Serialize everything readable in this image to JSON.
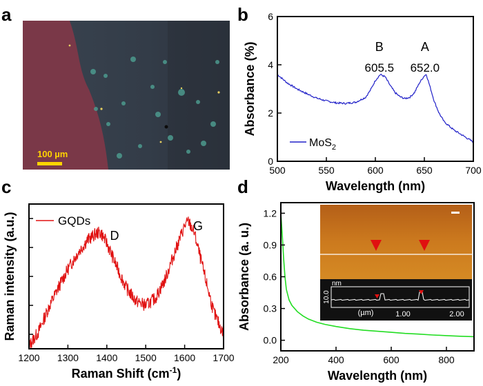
{
  "panels": {
    "a": {
      "letter": "a",
      "scalebar_label": "100 µm"
    },
    "b": {
      "letter": "b"
    },
    "c": {
      "letter": "c"
    },
    "d": {
      "letter": "d"
    }
  },
  "chart_data": [
    {
      "id": "b",
      "type": "line",
      "xlabel": "Wavelength (nm)",
      "ylabel": "Absorbance (%)",
      "xlim": [
        500,
        700
      ],
      "ylim": [
        0,
        6
      ],
      "xticks": [
        500,
        550,
        600,
        650,
        700
      ],
      "yticks": [
        0,
        2,
        4,
        6
      ],
      "legend": {
        "label": "MoS",
        "subscript": "2",
        "placement": "bottom-left"
      },
      "color": "#2020c8",
      "annotations": [
        {
          "label": "B",
          "value_label": "605.5",
          "x": 605.5
        },
        {
          "label": "A",
          "value_label": "652.0",
          "x": 652.0
        }
      ],
      "series": [
        {
          "name": "MoS2",
          "x": [
            500,
            510,
            520,
            530,
            540,
            550,
            560,
            570,
            580,
            590,
            595,
            600,
            605,
            610,
            615,
            620,
            625,
            630,
            635,
            640,
            645,
            650,
            652,
            655,
            660,
            665,
            670,
            680,
            690,
            700
          ],
          "y": [
            3.6,
            3.25,
            3.0,
            2.8,
            2.62,
            2.5,
            2.42,
            2.4,
            2.45,
            2.65,
            2.95,
            3.35,
            3.6,
            3.5,
            3.15,
            2.85,
            2.68,
            2.6,
            2.65,
            2.85,
            3.25,
            3.55,
            3.6,
            3.2,
            2.5,
            2.0,
            1.65,
            1.3,
            1.05,
            0.8
          ]
        }
      ]
    },
    {
      "id": "c",
      "type": "line",
      "xlabel": "Raman Shift (cm⁻¹)",
      "xlabel_main": "Raman Shift (cm",
      "xlabel_sup": "-1",
      "xlabel_end": ")",
      "ylabel": "Raman intensity (a.u.)",
      "xlim": [
        1200,
        1700
      ],
      "ylim": [
        0,
        1
      ],
      "xticks": [
        1200,
        1300,
        1400,
        1500,
        1600,
        1700
      ],
      "legend": {
        "label": "GQDs",
        "placement": "top-left"
      },
      "color": "#e01010",
      "annotations": [
        {
          "label": "D",
          "x": 1380
        },
        {
          "label": "G",
          "x": 1605
        }
      ],
      "series": [
        {
          "name": "GQDs",
          "x": [
            1200,
            1225,
            1250,
            1275,
            1300,
            1325,
            1350,
            1375,
            1385,
            1400,
            1425,
            1450,
            1475,
            1500,
            1525,
            1550,
            1575,
            1600,
            1610,
            1625,
            1650,
            1675,
            1700
          ],
          "y": [
            0.02,
            0.12,
            0.28,
            0.42,
            0.55,
            0.66,
            0.75,
            0.8,
            0.8,
            0.73,
            0.57,
            0.42,
            0.33,
            0.3,
            0.35,
            0.48,
            0.67,
            0.85,
            0.88,
            0.8,
            0.52,
            0.25,
            0.1
          ]
        }
      ]
    },
    {
      "id": "d",
      "type": "line",
      "xlabel": "Wavelength (nm)",
      "ylabel": "Absorbance (a. u.)",
      "xlim": [
        200,
        900
      ],
      "ylim": [
        -0.1,
        1.3
      ],
      "xticks": [
        200,
        400,
        600,
        800
      ],
      "yticks": [
        0.0,
        0.3,
        0.6,
        0.9,
        1.2
      ],
      "ytick_labels": [
        "0.0",
        "0.3",
        "0.6",
        "0.9",
        "1.2"
      ],
      "color": "#22dd22",
      "series": [
        {
          "name": "GQDs",
          "x": [
            200,
            205,
            210,
            215,
            220,
            230,
            240,
            260,
            280,
            300,
            330,
            360,
            400,
            450,
            500,
            550,
            600,
            650,
            700,
            750,
            800,
            850,
            900
          ],
          "y": [
            1.2,
            1.0,
            0.78,
            0.6,
            0.48,
            0.38,
            0.33,
            0.27,
            0.23,
            0.2,
            0.17,
            0.15,
            0.13,
            0.11,
            0.095,
            0.085,
            0.075,
            0.065,
            0.058,
            0.05,
            0.044,
            0.038,
            0.034
          ]
        }
      ],
      "inset": {
        "profile_yaxis_label": "nm",
        "profile_ytick": "10.0",
        "profile_xlabel": "(µm)",
        "profile_xticks": [
          "1.00",
          "2.00"
        ]
      }
    }
  ]
}
